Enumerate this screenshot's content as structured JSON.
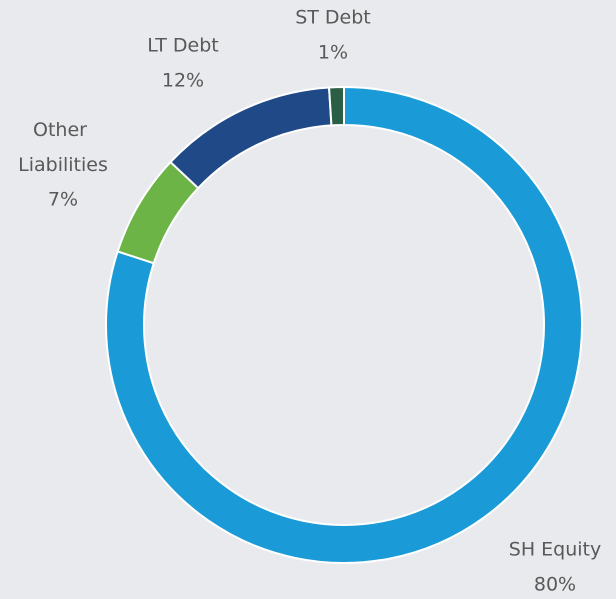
{
  "chart_data": {
    "type": "donut",
    "categories": [
      "SH Equity",
      "Other Liabilities",
      "LT Debt",
      "ST Debt"
    ],
    "values": [
      80,
      7,
      12,
      1
    ],
    "value_labels": [
      "80%",
      "7%",
      "12%",
      "1%"
    ],
    "colors": [
      "#1a9bd7",
      "#6bb445",
      "#1f4a87",
      "#2a5f45"
    ]
  }
}
